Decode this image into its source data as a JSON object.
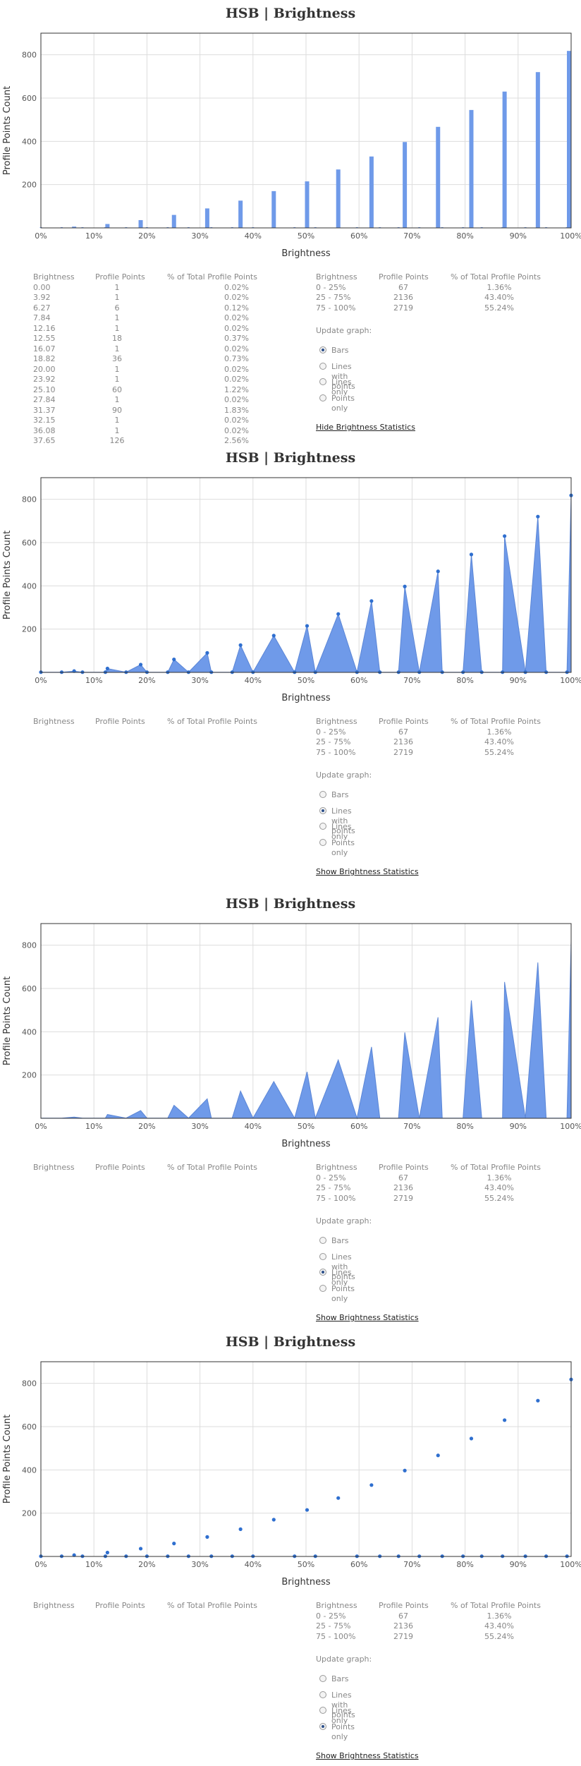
{
  "chart_data": {
    "type": "bar",
    "title": "HSB | Brightness",
    "xlabel": "Brightness",
    "ylabel": "Profile Points Count",
    "xlim": [
      0,
      100
    ],
    "ylim": [
      0,
      900
    ],
    "x_ticks": [
      "0%",
      "10%",
      "20%",
      "30%",
      "40%",
      "50%",
      "60%",
      "70%",
      "80%",
      "90%",
      "100%"
    ],
    "y_ticks": [
      200,
      400,
      600,
      800
    ],
    "points": [
      [
        0.0,
        1
      ],
      [
        3.92,
        1
      ],
      [
        6.27,
        6
      ],
      [
        7.84,
        1
      ],
      [
        12.16,
        1
      ],
      [
        12.55,
        18
      ],
      [
        16.07,
        1
      ],
      [
        18.82,
        36
      ],
      [
        20.0,
        1
      ],
      [
        23.92,
        1
      ],
      [
        25.1,
        60
      ],
      [
        27.84,
        1
      ],
      [
        31.37,
        90
      ],
      [
        32.15,
        1
      ],
      [
        36.08,
        1
      ],
      [
        37.65,
        126
      ],
      [
        40.0,
        1
      ],
      [
        43.92,
        170
      ],
      [
        47.84,
        1
      ],
      [
        50.2,
        215
      ],
      [
        51.76,
        1
      ],
      [
        56.08,
        270
      ],
      [
        59.61,
        1
      ],
      [
        62.35,
        330
      ],
      [
        63.92,
        1
      ],
      [
        67.45,
        1
      ],
      [
        68.63,
        397
      ],
      [
        71.37,
        1
      ],
      [
        74.9,
        467
      ],
      [
        75.69,
        1
      ],
      [
        79.61,
        1
      ],
      [
        81.18,
        545
      ],
      [
        83.14,
        1
      ],
      [
        87.06,
        1
      ],
      [
        87.45,
        630
      ],
      [
        91.37,
        1
      ],
      [
        93.73,
        720
      ],
      [
        95.29,
        1
      ],
      [
        99.22,
        1
      ],
      [
        100.0,
        818
      ]
    ]
  },
  "stats_headers": {
    "col1": "Brightness",
    "col2": "Profile Points",
    "col3": "% of Total Profile Points"
  },
  "brightness_stats": [
    {
      "b": "0.00",
      "p": "1",
      "pct": "0.02%"
    },
    {
      "b": "3.92",
      "p": "1",
      "pct": "0.02%"
    },
    {
      "b": "6.27",
      "p": "6",
      "pct": "0.12%"
    },
    {
      "b": "7.84",
      "p": "1",
      "pct": "0.02%"
    },
    {
      "b": "12.16",
      "p": "1",
      "pct": "0.02%"
    },
    {
      "b": "12.55",
      "p": "18",
      "pct": "0.37%"
    },
    {
      "b": "16.07",
      "p": "1",
      "pct": "0.02%"
    },
    {
      "b": "18.82",
      "p": "36",
      "pct": "0.73%"
    },
    {
      "b": "20.00",
      "p": "1",
      "pct": "0.02%"
    },
    {
      "b": "23.92",
      "p": "1",
      "pct": "0.02%"
    },
    {
      "b": "25.10",
      "p": "60",
      "pct": "1.22%"
    },
    {
      "b": "27.84",
      "p": "1",
      "pct": "0.02%"
    },
    {
      "b": "31.37",
      "p": "90",
      "pct": "1.83%"
    },
    {
      "b": "32.15",
      "p": "1",
      "pct": "0.02%"
    },
    {
      "b": "36.08",
      "p": "1",
      "pct": "0.02%"
    },
    {
      "b": "37.65",
      "p": "126",
      "pct": "2.56%"
    }
  ],
  "range_stats": [
    {
      "range": "0 - 25%",
      "p": "67",
      "pct": "1.36%"
    },
    {
      "range": "25 - 75%",
      "p": "2136",
      "pct": "43.40%"
    },
    {
      "range": "75 - 100%",
      "p": "2719",
      "pct": "55.24%"
    }
  ],
  "update_graph_label": "Update graph:",
  "graph_options": [
    "Bars",
    "Lines with points",
    "Lines only",
    "Points only"
  ],
  "panels": [
    {
      "mode": "Bars",
      "selected": 0,
      "link": "Hide Brightness Statistics",
      "show_detail": true
    },
    {
      "mode": "Lines with points",
      "selected": 1,
      "link": "Show Brightness Statistics",
      "show_detail": false
    },
    {
      "mode": "Lines only",
      "selected": 2,
      "link": "Show Brightness Statistics",
      "show_detail": false
    },
    {
      "mode": "Points only",
      "selected": 3,
      "link": "Show Brightness Statistics",
      "show_detail": false
    }
  ],
  "colors": {
    "series": "#6f9ae9",
    "point": "#2f6fcf",
    "grid": "#dddddd",
    "plot_border": "#333333"
  }
}
